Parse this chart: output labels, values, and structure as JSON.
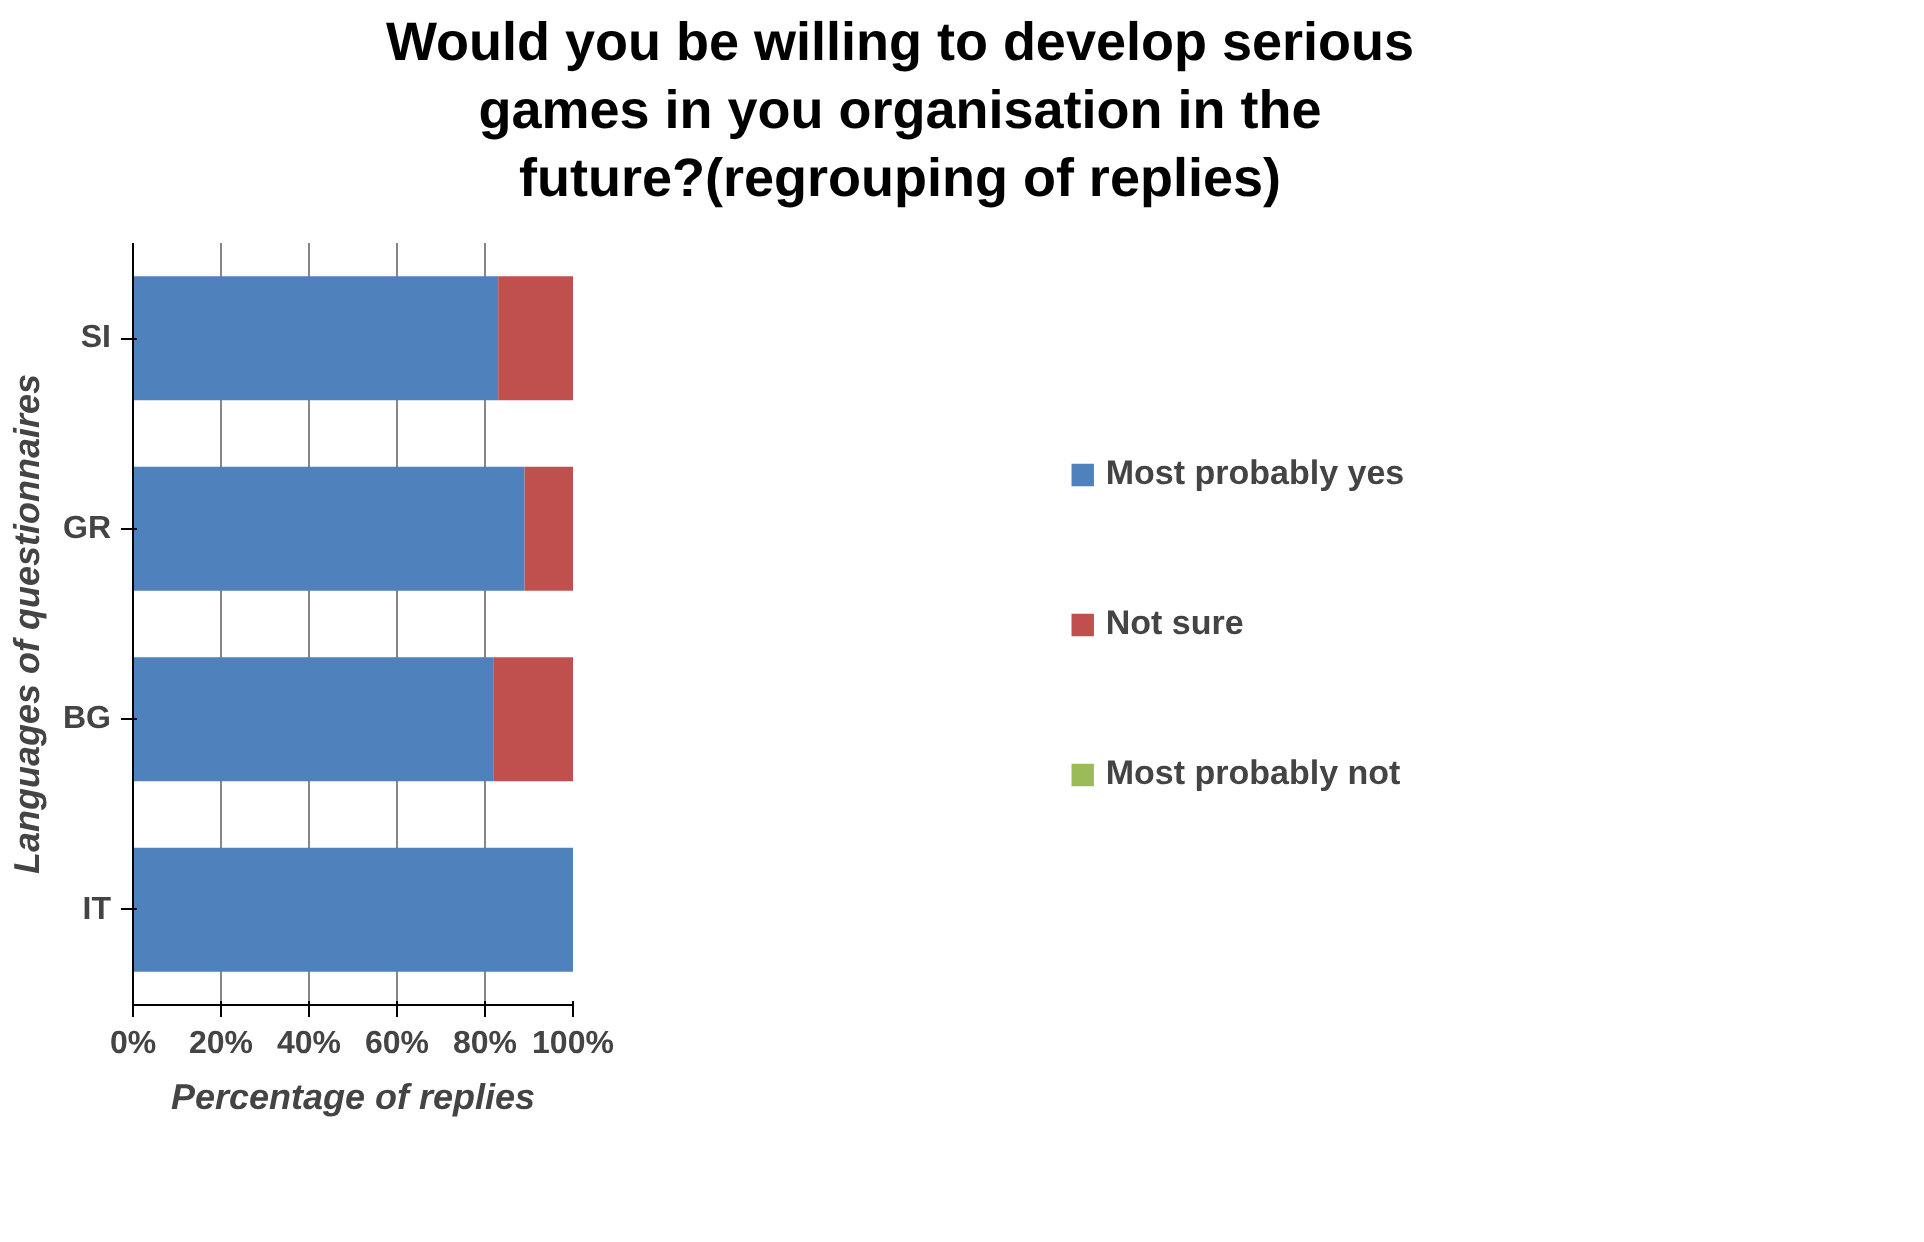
{
  "chart_data": {
    "type": "bar",
    "orientation": "horizontal",
    "stacked": true,
    "title": "Would you be  willing to develop serious\ngames in you organisation in the\nfuture?(regrouping of replies)",
    "xlabel": "Percentage of replies",
    "ylabel": "Languages of questionnaires",
    "categories": [
      "SI",
      "GR",
      "BG",
      "IT"
    ],
    "series": [
      {
        "name": "Most probably yes",
        "color": "#4f81bd",
        "values": [
          83,
          89,
          82,
          100
        ]
      },
      {
        "name": "Not sure",
        "color": "#c0504d",
        "values": [
          17,
          11,
          18,
          0
        ]
      },
      {
        "name": "Most probably not",
        "color": "#9bbb59",
        "values": [
          0,
          0,
          0,
          0
        ]
      }
    ],
    "xlim": [
      0,
      100
    ],
    "xticks": [
      {
        "value": 0,
        "label": "0%"
      },
      {
        "value": 20,
        "label": "20%"
      },
      {
        "value": 40,
        "label": "40%"
      },
      {
        "value": 60,
        "label": "60%"
      },
      {
        "value": 80,
        "label": "80%"
      },
      {
        "value": 100,
        "label": "100%"
      }
    ],
    "grid": "x",
    "legend": "right"
  }
}
